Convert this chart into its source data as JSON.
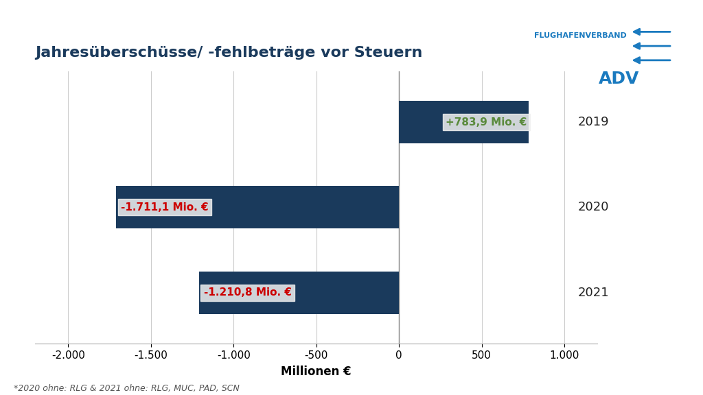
{
  "title": "Jahresüberschüsse/ -fehlbeträge vor Steuern",
  "categories": [
    "2019",
    "2020",
    "2021"
  ],
  "values": [
    783.9,
    -1711.1,
    -1210.8
  ],
  "bar_color": "#1a3a5c",
  "bar_height": 0.5,
  "xlim": [
    -2200,
    1200
  ],
  "xticks": [
    -2000,
    -1500,
    -1000,
    -500,
    0,
    500,
    1000
  ],
  "xtick_labels": [
    "-2.000",
    "-1.500",
    "-1.000",
    "-500",
    "0",
    "500",
    "1.000"
  ],
  "xlabel": "Millionen €",
  "background_color": "#ffffff",
  "grid_color": "#cccccc",
  "label_2019": "+783,9 Mio. €",
  "label_2020": "-1.711,1 Mio. €",
  "label_2021": "-1.210,8 Mio. €",
  "label_color_positive": "#5a8a3c",
  "label_color_negative": "#cc0000",
  "label_bg_color": "#f0f0f0",
  "footnote": "*2020 ohne: RLG & 2021 ohne: RLG, MUC, PAD, SCN",
  "title_fontsize": 16,
  "tick_fontsize": 11,
  "xlabel_fontsize": 12,
  "year_label_fontsize": 13,
  "bar_label_fontsize": 11,
  "footnote_fontsize": 9,
  "adv_text": "FLUGHAFENVERBAND",
  "adv_logo_color": "#1a7abf"
}
